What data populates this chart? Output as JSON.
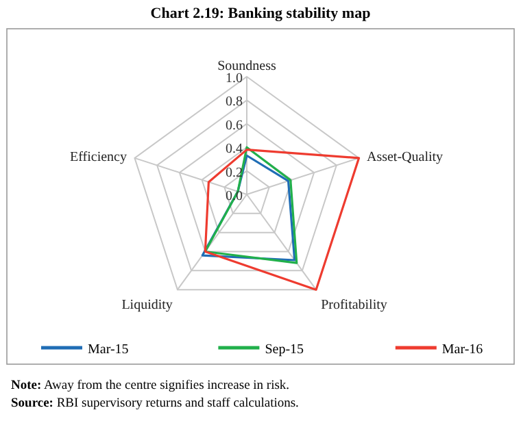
{
  "chart_data": {
    "type": "radar",
    "title": "Chart 2.19: Banking stability map",
    "categories": [
      "Soundness",
      "Asset-Quality",
      "Profitability",
      "Liquidity",
      "Efficiency"
    ],
    "ylim": [
      0,
      1
    ],
    "yticks": [
      {
        "value": 0,
        "label": "0.0"
      },
      0.2,
      0.4,
      0.6,
      0.8,
      {
        "value": 1,
        "label": "1.0"
      }
    ],
    "grid": true,
    "legend": "bottom",
    "marker": "none",
    "series": [
      {
        "name": "Mar-15",
        "color": "#1f6db5",
        "values": [
          0.33,
          0.37,
          0.69,
          0.64,
          0.08
        ]
      },
      {
        "name": "Sep-15",
        "color": "#21b04b",
        "values": [
          0.4,
          0.39,
          0.72,
          0.6,
          0.08
        ]
      },
      {
        "name": "Mar-16",
        "color": "#ee3b2f",
        "values": [
          0.38,
          1.0,
          1.0,
          0.6,
          0.34
        ]
      }
    ],
    "annotations": [
      "Note: Away from the centre signifies increase in risk.",
      "Source: RBI supervisory returns and staff calculations."
    ]
  }
}
